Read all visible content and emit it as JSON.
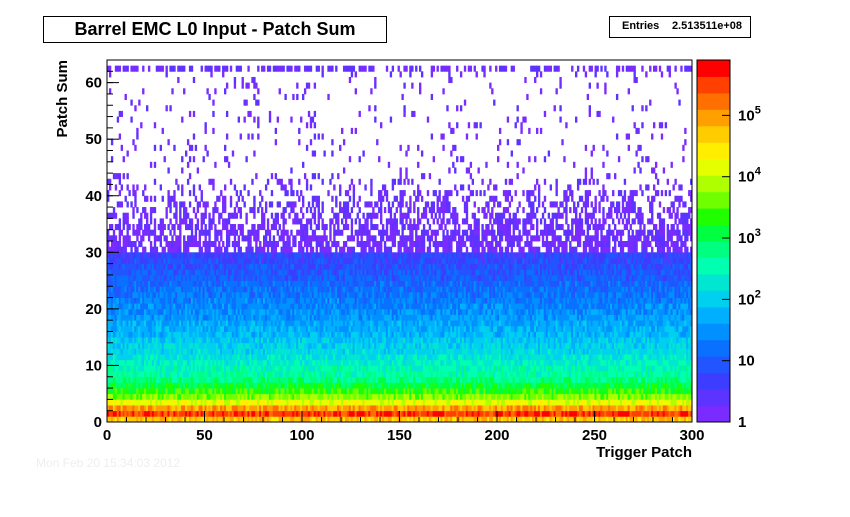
{
  "chart_data": {
    "type": "heatmap",
    "title": "Barrel EMC L0 Input - Patch Sum",
    "stats": {
      "label": "Entries",
      "value": "2.513511e+08"
    },
    "xlabel": "Trigger Patch",
    "ylabel": "Patch Sum",
    "xlim": [
      0,
      300
    ],
    "ylim": [
      0,
      64
    ],
    "x_ticks": [
      0,
      50,
      100,
      150,
      200,
      250,
      300
    ],
    "y_ticks": [
      0,
      10,
      20,
      30,
      40,
      50,
      60
    ],
    "colorbar": {
      "scale": "log",
      "range": [
        1,
        800000
      ],
      "ticks": [
        {
          "value": 1,
          "label": "1"
        },
        {
          "value": 10,
          "label": "10"
        },
        {
          "value": 100,
          "label": "10",
          "exp": "2"
        },
        {
          "value": 1000,
          "label": "10",
          "exp": "3"
        },
        {
          "value": 10000,
          "label": "10",
          "exp": "4"
        },
        {
          "value": 100000,
          "label": "10",
          "exp": "5"
        }
      ]
    },
    "profile_counts_per_bin": [
      {
        "patch_sum": 0,
        "counts": 8000
      },
      {
        "patch_sum": 1,
        "counts": 400000
      },
      {
        "patch_sum": 2,
        "counts": 300000
      },
      {
        "patch_sum": 3,
        "counts": 25000
      },
      {
        "patch_sum": 5,
        "counts": 3000
      },
      {
        "patch_sum": 8,
        "counts": 500
      },
      {
        "patch_sum": 12,
        "counts": 150
      },
      {
        "patch_sum": 18,
        "counts": 40
      },
      {
        "patch_sum": 25,
        "counts": 12
      },
      {
        "patch_sum": 30,
        "counts": 5
      },
      {
        "patch_sum": 35,
        "counts": 2
      },
      {
        "patch_sum": 42,
        "counts": 1
      },
      {
        "patch_sum": 62,
        "counts": 1
      }
    ]
  },
  "footer_text": "Mon Feb 20 15:34:03 2012"
}
